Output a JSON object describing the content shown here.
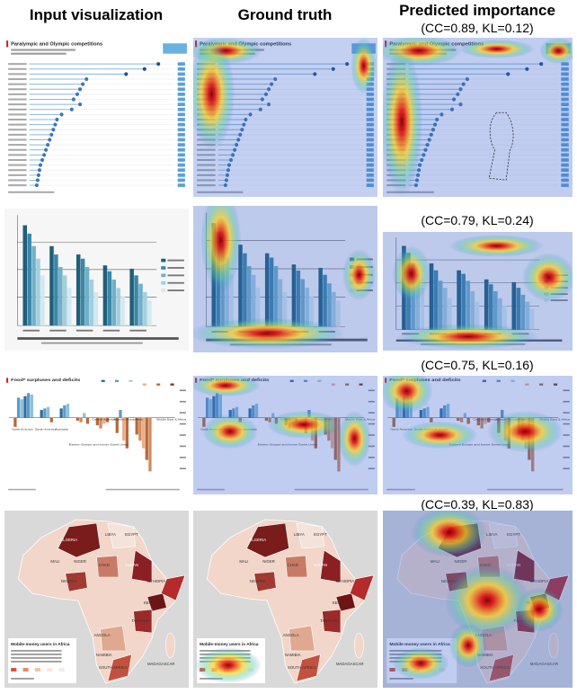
{
  "columns": [
    "Input visualization",
    "Ground truth",
    "Predicted importance"
  ],
  "scores": [
    "(CC=0.89, KL=0.12)",
    "(CC=0.79, KL=0.24)",
    "(CC=0.75, KL=0.16)",
    "(CC=0.39, KL=0.83)"
  ],
  "thumbnails": {
    "lollipop": {
      "title": "Paralympic and Olympic competitions"
    },
    "diverging": {
      "title": "Food* surpluses and deficits",
      "regions": [
        "North America",
        "South America",
        "Australia",
        "Central America",
        "Western Europe",
        "Asia",
        "Middle East & Africa",
        "Eastern Europe and former Soviet Union"
      ]
    },
    "map": {
      "title": "Mobile-money users in Africa",
      "countries": [
        "ALGERIA",
        "LIBYA",
        "EGYPT",
        "MALI",
        "NIGER",
        "CHAD",
        "SUDAN",
        "ETHIOPIA",
        "NIGERIA",
        "KENYA",
        "TANZANIA",
        "ANGOLA",
        "NAMIBIA",
        "SOUTH AFRICA",
        "MADAGASCAR"
      ]
    }
  }
}
